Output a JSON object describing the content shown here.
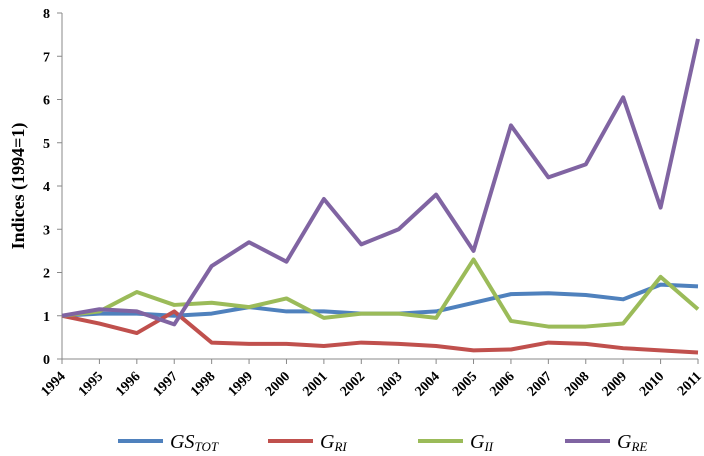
{
  "chart_data": {
    "type": "line",
    "y_label": "Indices (1994=1)",
    "categories": [
      "1994",
      "1995",
      "1996",
      "1997",
      "1998",
      "1999",
      "2000",
      "2001",
      "2002",
      "2003",
      "2004",
      "2005",
      "2006",
      "2007",
      "2008",
      "2009",
      "2010",
      "2011"
    ],
    "ylim": [
      0,
      8
    ],
    "yticks": [
      0,
      1,
      2,
      3,
      4,
      5,
      6,
      7,
      8
    ],
    "grid": false,
    "series": [
      {
        "name": "GS",
        "subscript": "TOT",
        "color": "#4f81bd",
        "values": [
          1.0,
          1.05,
          1.05,
          1.0,
          1.05,
          1.2,
          1.1,
          1.1,
          1.05,
          1.05,
          1.1,
          1.3,
          1.5,
          1.52,
          1.48,
          1.38,
          1.72,
          1.68
        ]
      },
      {
        "name": "G",
        "subscript": "RI",
        "color": "#c0504d",
        "values": [
          1.0,
          0.82,
          0.6,
          1.1,
          0.38,
          0.35,
          0.35,
          0.3,
          0.38,
          0.35,
          0.3,
          0.2,
          0.22,
          0.38,
          0.35,
          0.25,
          0.2,
          0.15
        ]
      },
      {
        "name": "G",
        "subscript": "II",
        "color": "#9bbb59",
        "values": [
          1.0,
          1.1,
          1.55,
          1.25,
          1.3,
          1.2,
          1.4,
          0.95,
          1.05,
          1.05,
          0.95,
          2.3,
          0.88,
          0.75,
          0.75,
          0.82,
          1.9,
          1.15
        ]
      },
      {
        "name": "G",
        "subscript": "RE",
        "color": "#8064a2",
        "values": [
          1.0,
          1.15,
          1.1,
          0.8,
          2.15,
          2.7,
          2.25,
          3.7,
          2.65,
          3.0,
          3.8,
          2.5,
          5.4,
          4.2,
          4.5,
          6.05,
          3.5,
          7.4
        ]
      }
    ]
  }
}
